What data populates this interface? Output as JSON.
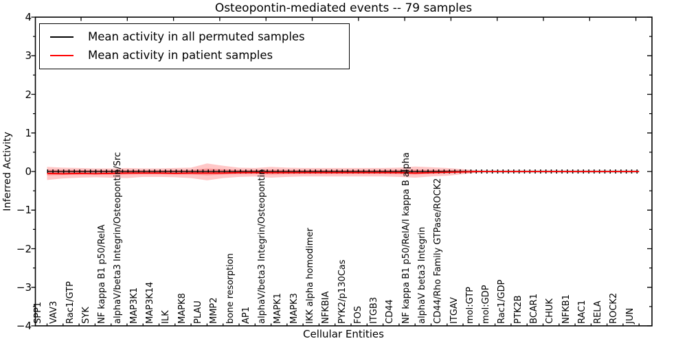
{
  "title": "Osteopontin-mediated events -- 79 samples",
  "axes": {
    "ylabel": "Inferred Activity",
    "xlabel": "Cellular Entities",
    "ytick_labels": [
      "4",
      "3",
      "2",
      "1",
      "0",
      "−1",
      "−2",
      "−3",
      "−4"
    ]
  },
  "legend": {
    "position": "upper left",
    "items": [
      {
        "label": "Mean activity in all permuted samples",
        "color": "#000000"
      },
      {
        "label": "Mean activity in patient samples",
        "color": "#ff0000"
      }
    ]
  },
  "colors": {
    "permuted_line": "#000000",
    "patient_line": "#ff0000",
    "patient_band": "rgba(255,0,0,0.22)",
    "permuted_band": "rgba(0,0,0,0.13)",
    "frame": "#000000",
    "background": "#ffffff"
  },
  "chart_data": {
    "type": "line",
    "title": "Osteopontin-mediated events -- 79 samples",
    "xlabel": "Cellular Entities",
    "ylabel": "Inferred Activity",
    "ylim": [
      -4,
      4
    ],
    "yticks": [
      4,
      3,
      2,
      1,
      0,
      -1,
      -2,
      -3,
      -4
    ],
    "grid": false,
    "legend_position": "upper left",
    "categories": [
      "SPP1",
      "VAV3",
      "Rac1/GTP",
      "SYK",
      "NF kappa B1 p50/RelA",
      "alphaV/beta3 Integrin/Osteopontin/Src",
      "MAP3K1",
      "MAP3K14",
      "ILK",
      "MAPK8",
      "PLAU",
      "MMP2",
      "bone resorption",
      "AP1",
      "alphaV/beta3 Integrin/Osteopontin",
      "MAPK1",
      "MAPK3",
      "IKK alpha homodimer",
      "NFKBIA",
      "PYK2/p130Cas",
      "FOS",
      "ITGB3",
      "CD44",
      "NF kappa B1 p50/RelA/I kappa B alpha",
      "alphaV beta3 Integrin",
      "CD44/Rho Family GTPase/ROCK2",
      "ITGAV",
      "mol:GTP",
      "mol:GDP",
      "Rac1/GDP",
      "PTK2B",
      "BCAR1",
      "CHUK",
      "NFKB1",
      "RAC1",
      "RELA",
      "ROCK2",
      "JUN"
    ],
    "series": [
      {
        "name": "Mean activity in all permuted samples",
        "color": "#000000",
        "line_style": "solid with tick markers",
        "values": [
          0,
          0,
          0,
          0,
          0,
          0,
          0,
          0,
          0,
          0,
          0,
          0,
          0,
          0,
          0,
          0,
          0,
          0,
          0,
          0,
          0,
          0,
          0,
          0,
          0,
          0,
          0,
          0,
          0,
          0,
          0,
          0,
          0,
          0,
          0,
          0,
          0,
          0
        ],
        "band_upper": [
          0.04,
          0.04,
          0.04,
          0.04,
          0.04,
          0.04,
          0.04,
          0.04,
          0.04,
          0.04,
          0.04,
          0.04,
          0.04,
          0.04,
          0.04,
          0.04,
          0.04,
          0.04,
          0.04,
          0.04,
          0.04,
          0.04,
          0.04,
          0.04,
          0.04,
          0.04,
          0.04,
          0.04,
          0.04,
          0.04,
          0.04,
          0.04,
          0.04,
          0.04,
          0.04,
          0.04,
          0.04,
          0.04
        ],
        "band_lower": [
          -0.04,
          -0.04,
          -0.04,
          -0.04,
          -0.04,
          -0.04,
          -0.04,
          -0.04,
          -0.04,
          -0.04,
          -0.04,
          -0.04,
          -0.04,
          -0.04,
          -0.04,
          -0.04,
          -0.04,
          -0.04,
          -0.04,
          -0.04,
          -0.04,
          -0.04,
          -0.04,
          -0.04,
          -0.04,
          -0.04,
          -0.04,
          -0.04,
          -0.04,
          -0.04,
          -0.04,
          -0.04,
          -0.04,
          -0.04,
          -0.04,
          -0.04,
          -0.04,
          -0.04
        ],
        "band_color": "rgba(0,0,0,0.13)"
      },
      {
        "name": "Mean activity in patient samples",
        "color": "#ff0000",
        "line_style": "solid",
        "values": [
          -0.05,
          -0.06,
          -0.05,
          -0.06,
          -0.05,
          -0.04,
          -0.04,
          -0.04,
          -0.05,
          -0.04,
          -0.04,
          -0.04,
          -0.03,
          -0.03,
          -0.03,
          -0.03,
          -0.03,
          -0.03,
          -0.03,
          -0.03,
          -0.03,
          -0.03,
          -0.03,
          -0.04,
          -0.03,
          -0.02,
          -0.01,
          0,
          0,
          0,
          0,
          0,
          0,
          0,
          0,
          0,
          0,
          0
        ],
        "band_outer_upper": [
          0.12,
          0.1,
          0.09,
          0.08,
          0.08,
          0.09,
          0.08,
          0.08,
          0.09,
          0.1,
          0.21,
          0.15,
          0.1,
          0.09,
          0.12,
          0.1,
          0.09,
          0.09,
          0.09,
          0.09,
          0.09,
          0.09,
          0.1,
          0.13,
          0.11,
          0.09,
          0.06,
          0.02,
          0,
          0,
          0,
          0,
          0,
          0,
          0,
          0,
          0,
          0
        ],
        "band_outer_lower": [
          -0.22,
          -0.18,
          -0.16,
          -0.15,
          -0.16,
          -0.17,
          -0.14,
          -0.14,
          -0.15,
          -0.17,
          -0.23,
          -0.17,
          -0.14,
          -0.13,
          -0.16,
          -0.14,
          -0.13,
          -0.13,
          -0.13,
          -0.13,
          -0.13,
          -0.13,
          -0.14,
          -0.16,
          -0.13,
          -0.11,
          -0.07,
          -0.02,
          0,
          0,
          0,
          0,
          0,
          0,
          0,
          0,
          0,
          0
        ],
        "band_inner_upper": [
          0.05,
          0.04,
          0.04,
          0.03,
          0.03,
          0.04,
          0.03,
          0.03,
          0.04,
          0.04,
          0.08,
          0.06,
          0.04,
          0.04,
          0.05,
          0.04,
          0.04,
          0.04,
          0.04,
          0.04,
          0.04,
          0.04,
          0.04,
          0.05,
          0.04,
          0.04,
          0.02,
          0.01,
          0,
          0,
          0,
          0,
          0,
          0,
          0,
          0,
          0,
          0
        ],
        "band_inner_lower": [
          -0.1,
          -0.09,
          -0.08,
          -0.07,
          -0.08,
          -0.08,
          -0.07,
          -0.07,
          -0.07,
          -0.08,
          -0.1,
          -0.08,
          -0.07,
          -0.06,
          -0.08,
          -0.07,
          -0.06,
          -0.06,
          -0.06,
          -0.06,
          -0.06,
          -0.06,
          -0.07,
          -0.08,
          -0.06,
          -0.05,
          -0.03,
          -0.01,
          0,
          0,
          0,
          0,
          0,
          0,
          0,
          0,
          0,
          0
        ],
        "band_color": "rgba(255,0,0,0.22)"
      }
    ]
  }
}
